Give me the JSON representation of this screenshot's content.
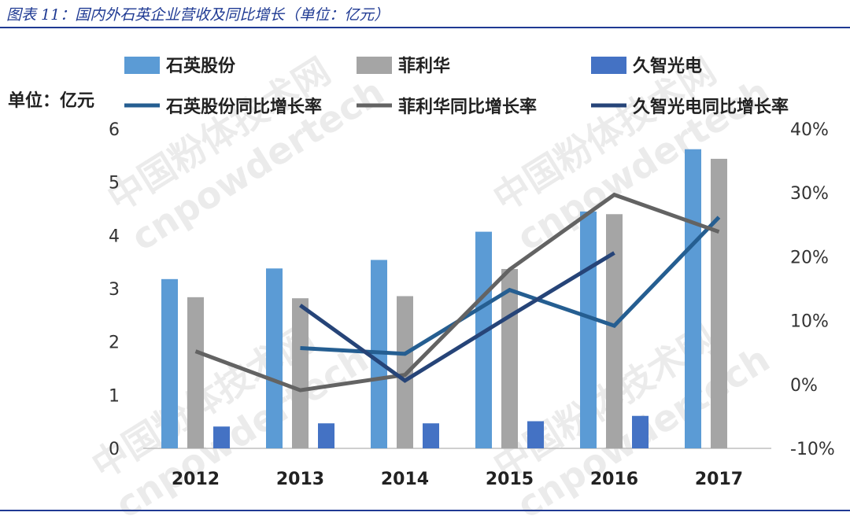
{
  "title": "图表 11：国内外石英企业营收及同比增长（单位：亿元）",
  "unit_label": "单位：亿元",
  "watermark": [
    "中国粉体技术网",
    "cnpowdertech"
  ],
  "colors": {
    "bar1": "#5b9bd5",
    "bar2": "#a5a5a5",
    "bar3": "#4472c4",
    "line1": "#255e91",
    "line2": "#636363",
    "line3": "#264478",
    "rule": "#1f3a93"
  },
  "chart_data": {
    "type": "bar",
    "categories": [
      "2012",
      "2013",
      "2014",
      "2015",
      "2016",
      "2017"
    ],
    "y_left": {
      "ticks": [
        "0",
        "1",
        "2",
        "3",
        "4",
        "5",
        "6"
      ],
      "range": [
        0,
        6
      ]
    },
    "y_right": {
      "ticks": [
        "-10%",
        "0%",
        "10%",
        "20%",
        "30%",
        "40%"
      ],
      "range": [
        -10,
        40
      ]
    },
    "legend_placement": "top",
    "series": [
      {
        "name": "石英股份",
        "kind": "bar",
        "axis": "left",
        "values": [
          3.18,
          3.38,
          3.54,
          4.07,
          4.45,
          5.62
        ]
      },
      {
        "name": "菲利华",
        "kind": "bar",
        "axis": "left",
        "values": [
          2.84,
          2.82,
          2.86,
          3.37,
          4.4,
          5.44
        ]
      },
      {
        "name": "久智光电",
        "kind": "bar",
        "axis": "left",
        "values": [
          0.41,
          0.47,
          0.47,
          0.51,
          0.61,
          null
        ]
      },
      {
        "name": "石英股份同比增长率",
        "kind": "line",
        "axis": "right",
        "values": [
          null,
          5.7,
          4.8,
          14.8,
          9.2,
          26.2
        ]
      },
      {
        "name": "菲利华同比增长率",
        "kind": "line",
        "axis": "right",
        "values": [
          5.2,
          -0.9,
          1.5,
          18.0,
          29.7,
          23.9
        ]
      },
      {
        "name": "久智光电同比增长率",
        "kind": "line",
        "axis": "right",
        "values": [
          null,
          12.4,
          0.6,
          10.7,
          20.6,
          null
        ]
      }
    ]
  }
}
